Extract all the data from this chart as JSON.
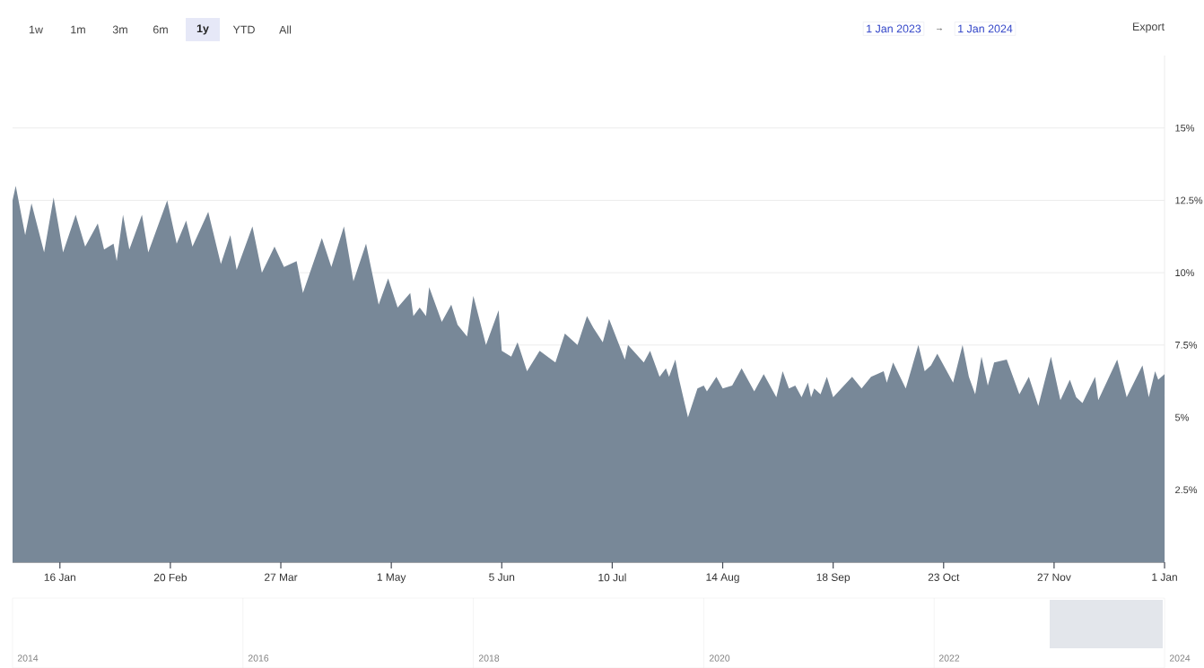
{
  "chart_data": [
    {
      "type": "area",
      "x": [
        "2023-01-01",
        "2023-01-02",
        "2023-01-05",
        "2023-01-07",
        "2023-01-11",
        "2023-01-14",
        "2023-01-17",
        "2023-01-21",
        "2023-01-24",
        "2023-01-28",
        "2023-01-30",
        "2023-02-02",
        "2023-02-03",
        "2023-02-05",
        "2023-02-07",
        "2023-02-11",
        "2023-02-13",
        "2023-02-19",
        "2023-02-22",
        "2023-02-25",
        "2023-02-27",
        "2023-03-04",
        "2023-03-08",
        "2023-03-11",
        "2023-03-13",
        "2023-03-18",
        "2023-03-21",
        "2023-03-25",
        "2023-03-28",
        "2023-04-01",
        "2023-04-03",
        "2023-04-09",
        "2023-04-12",
        "2023-04-16",
        "2023-04-19",
        "2023-04-23",
        "2023-04-27",
        "2023-04-30",
        "2023-05-03",
        "2023-05-07",
        "2023-05-08",
        "2023-05-10",
        "2023-05-12",
        "2023-05-13",
        "2023-05-17",
        "2023-05-20",
        "2023-05-22",
        "2023-05-25",
        "2023-05-27",
        "2023-05-31",
        "2023-06-04",
        "2023-06-05",
        "2023-06-08",
        "2023-06-10",
        "2023-06-13",
        "2023-06-17",
        "2023-06-22",
        "2023-06-25",
        "2023-06-29",
        "2023-07-02",
        "2023-07-04",
        "2023-07-07",
        "2023-07-09",
        "2023-07-14",
        "2023-07-15",
        "2023-07-20",
        "2023-07-22",
        "2023-07-25",
        "2023-07-27",
        "2023-07-28",
        "2023-07-30",
        "2023-07-31",
        "2023-08-03",
        "2023-08-06",
        "2023-08-08",
        "2023-08-09",
        "2023-08-12",
        "2023-08-14",
        "2023-08-17",
        "2023-08-20",
        "2023-08-24",
        "2023-08-27",
        "2023-08-29",
        "2023-08-31",
        "2023-09-02",
        "2023-09-04",
        "2023-09-06",
        "2023-09-08",
        "2023-09-10",
        "2023-09-11",
        "2023-09-12",
        "2023-09-14",
        "2023-09-16",
        "2023-09-18",
        "2023-09-24",
        "2023-09-27",
        "2023-09-30",
        "2023-10-04",
        "2023-10-05",
        "2023-10-07",
        "2023-10-11",
        "2023-10-15",
        "2023-10-17",
        "2023-10-19",
        "2023-10-21",
        "2023-10-26",
        "2023-10-29",
        "2023-10-31",
        "2023-11-02",
        "2023-11-04",
        "2023-11-06",
        "2023-11-08",
        "2023-11-12",
        "2023-11-16",
        "2023-11-19",
        "2023-11-22",
        "2023-11-26",
        "2023-11-29",
        "2023-12-02",
        "2023-12-04",
        "2023-12-06",
        "2023-12-10",
        "2023-12-11",
        "2023-12-17",
        "2023-12-20",
        "2023-12-25",
        "2023-12-27",
        "2023-12-29",
        "2023-12-30",
        "2024-01-01"
      ],
      "series": [
        {
          "color": "#788898",
          "values": [
            12.5,
            13.0,
            11.3,
            12.4,
            10.7,
            12.6,
            10.7,
            12.0,
            10.9,
            11.7,
            10.8,
            11.0,
            10.4,
            12.0,
            10.8,
            12.0,
            10.7,
            12.5,
            11.0,
            11.8,
            10.9,
            12.1,
            10.3,
            11.3,
            10.1,
            11.6,
            10.0,
            10.9,
            10.2,
            10.4,
            9.3,
            11.2,
            10.2,
            11.6,
            9.7,
            11.0,
            8.9,
            9.8,
            8.8,
            9.3,
            8.5,
            8.8,
            8.5,
            9.5,
            8.3,
            8.9,
            8.2,
            7.8,
            9.2,
            7.5,
            8.7,
            7.3,
            7.1,
            7.6,
            6.6,
            7.3,
            6.9,
            7.9,
            7.5,
            8.5,
            8.1,
            7.6,
            8.4,
            7.0,
            7.5,
            6.9,
            7.3,
            6.4,
            6.7,
            6.4,
            7.0,
            6.4,
            5.0,
            6.0,
            6.1,
            5.9,
            6.4,
            6.0,
            6.1,
            6.7,
            5.9,
            6.5,
            6.1,
            5.7,
            6.6,
            6.0,
            6.1,
            5.7,
            6.2,
            5.7,
            6.0,
            5.8,
            6.4,
            5.7,
            6.4,
            6.0,
            6.4,
            6.6,
            6.2,
            6.9,
            6.0,
            7.5,
            6.6,
            6.8,
            7.2,
            6.2,
            7.5,
            6.4,
            5.8,
            7.1,
            6.1,
            6.9,
            7.0,
            5.8,
            6.4,
            5.4,
            7.1,
            5.6,
            6.3,
            5.7,
            5.5,
            6.4,
            5.6,
            7.0,
            5.7,
            6.8,
            5.7,
            6.6,
            6.3,
            6.5
          ]
        }
      ],
      "xlim": [
        "2023-01-01",
        "2024-01-01"
      ],
      "xticks": [
        {
          "value": "2023-01-16",
          "label": "16 Jan"
        },
        {
          "value": "2023-02-20",
          "label": "20 Feb"
        },
        {
          "value": "2023-03-27",
          "label": "27 Mar"
        },
        {
          "value": "2023-05-01",
          "label": "1 May"
        },
        {
          "value": "2023-06-05",
          "label": "5 Jun"
        },
        {
          "value": "2023-07-10",
          "label": "10 Jul"
        },
        {
          "value": "2023-08-14",
          "label": "14 Aug"
        },
        {
          "value": "2023-09-18",
          "label": "18 Sep"
        },
        {
          "value": "2023-10-23",
          "label": "23 Oct"
        },
        {
          "value": "2023-11-27",
          "label": "27 Nov"
        },
        {
          "value": "2024-01-01",
          "label": "1 Jan"
        }
      ],
      "ylim": [
        0,
        17.5
      ],
      "yticks": [
        {
          "value": 2.5,
          "label": "2.5%"
        },
        {
          "value": 5,
          "label": "5%"
        },
        {
          "value": 7.5,
          "label": "7.5%"
        },
        {
          "value": 10,
          "label": "10%"
        },
        {
          "value": 12.5,
          "label": "12.5%"
        },
        {
          "value": 15,
          "label": "15%"
        }
      ],
      "grid": "y",
      "annotations": [
        "1w",
        "1m",
        "3m",
        "6m",
        "1y",
        "YTD",
        "All",
        "1 Jan 2023",
        "→",
        "1 Jan 2024",
        "Export",
        "2014",
        "2016",
        "2018",
        "2020",
        "2022",
        "2024"
      ]
    }
  ]
}
